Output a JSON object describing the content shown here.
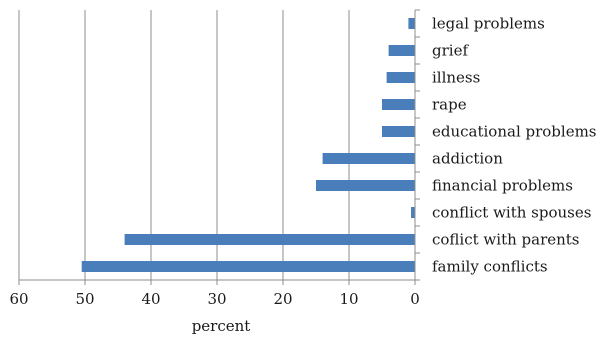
{
  "chart_data": {
    "type": "bar",
    "orientation": "horizontal",
    "x_reversed": true,
    "categories": [
      "legal problems",
      "grief",
      "illness",
      "rape",
      "educational problems",
      "addiction",
      "financial problems",
      "conflict with spouses",
      "coflict with parents",
      "family conflicts"
    ],
    "values": [
      1,
      4,
      4.3,
      5,
      5,
      14,
      15,
      0.6,
      44,
      50.5
    ],
    "xlabel": "percent",
    "xlim": [
      0,
      60
    ],
    "xticks": [
      "0",
      "10",
      "20",
      "30",
      "40",
      "50",
      "60"
    ],
    "grid": "vertical",
    "legend": "none",
    "bar_color": "#4a7ebb"
  }
}
